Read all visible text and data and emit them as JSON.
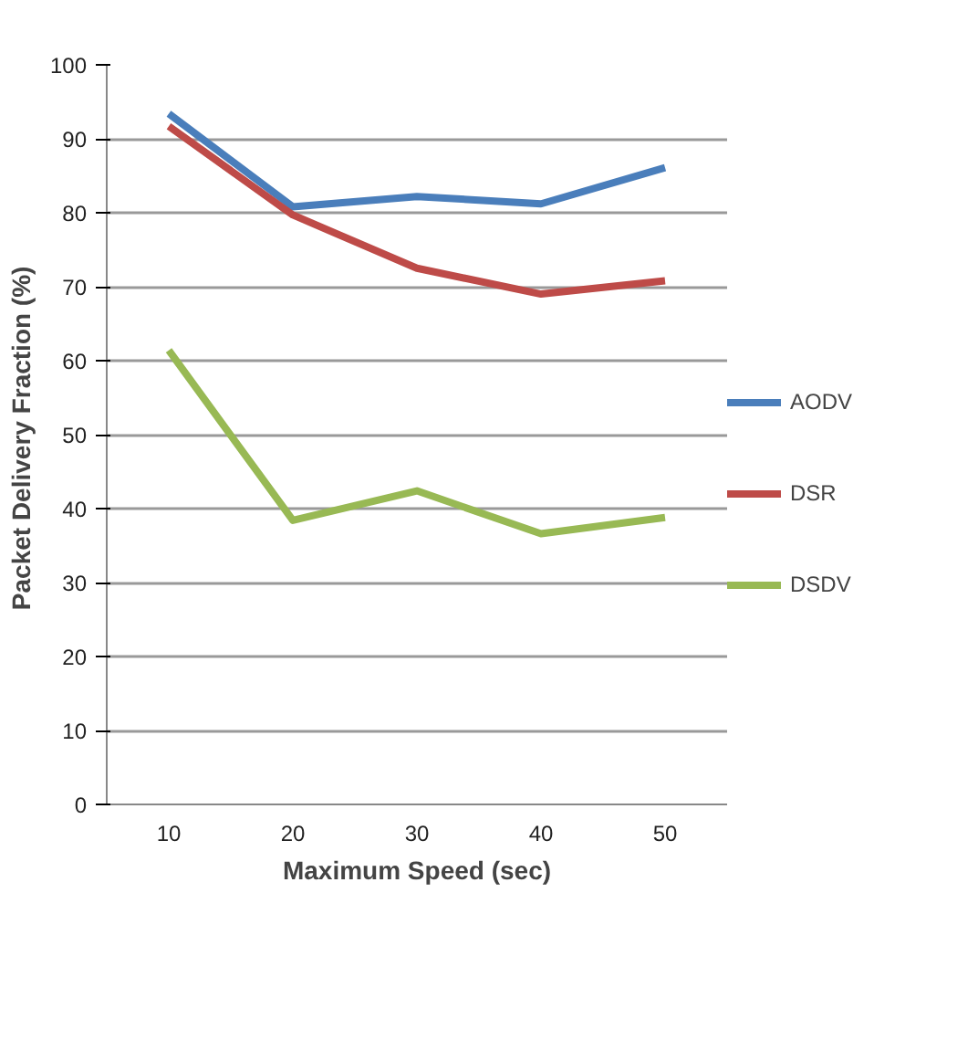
{
  "chart_data": {
    "type": "line",
    "xlabel": "Maximum Speed (sec)",
    "ylabel": "Packet Delivery Fraction  (%)",
    "categories": [
      "10",
      "20",
      "30",
      "40",
      "50"
    ],
    "series": [
      {
        "name": "AODV",
        "color": "#4a7ebb",
        "values": [
          93.4,
          80.8,
          82.2,
          81.2,
          86.1
        ]
      },
      {
        "name": "DSR",
        "color": "#be4b48",
        "values": [
          91.7,
          79.7,
          72.5,
          69.0,
          70.8
        ]
      },
      {
        "name": "DSDV",
        "color": "#98b954",
        "values": [
          61.4,
          38.4,
          42.4,
          36.6,
          38.8
        ]
      }
    ],
    "ylim": [
      0,
      100
    ],
    "yticks": [
      0,
      10,
      20,
      30,
      40,
      50,
      60,
      70,
      80,
      90,
      100
    ],
    "grid": "y",
    "legend": "right",
    "marker": "none",
    "line_style": "solid"
  }
}
